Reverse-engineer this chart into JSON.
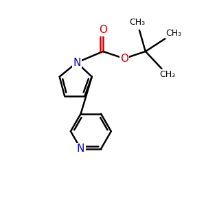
{
  "background_color": "#FFFFFF",
  "bond_color": "#000000",
  "nitrogen_color": "#0000CC",
  "oxygen_color": "#CC0000",
  "bond_width": 1.8,
  "dbo": 0.12,
  "figsize": [
    3.0,
    3.0
  ],
  "dpi": 100,
  "xlim": [
    0,
    10
  ],
  "ylim": [
    0,
    10
  ]
}
